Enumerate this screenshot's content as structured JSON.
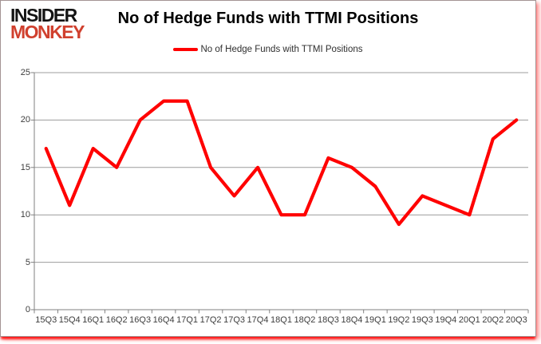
{
  "brand": {
    "line1": "INSIDER",
    "line2": "MONKEY",
    "monkey_color": "#d0402e",
    "insider_color": "#141414"
  },
  "header": {
    "title": "No of Hedge Funds with TTMI Positions"
  },
  "legend": {
    "label": "No of Hedge Funds with TTMI Positions",
    "line_color": "#ff0000"
  },
  "chart_data": {
    "type": "line",
    "title": "No of Hedge Funds with TTMI Positions",
    "categories": [
      "15Q3",
      "15Q4",
      "16Q1",
      "16Q2",
      "16Q3",
      "16Q4",
      "17Q1",
      "17Q2",
      "17Q3",
      "17Q4",
      "18Q1",
      "18Q2",
      "18Q3",
      "18Q4",
      "19Q1",
      "19Q2",
      "19Q3",
      "19Q4",
      "20Q1",
      "20Q2",
      "20Q3"
    ],
    "series": [
      {
        "name": "No of Hedge Funds with TTMI Positions",
        "color": "#ff0000",
        "values": [
          17,
          11,
          17,
          15,
          20,
          22,
          22,
          15,
          12,
          15,
          10,
          10,
          16,
          15,
          13,
          9,
          12,
          11,
          10,
          18,
          20
        ]
      }
    ],
    "xlabel": "",
    "ylabel": "",
    "ylim": [
      0,
      25
    ],
    "yticks": [
      0,
      5,
      10,
      15,
      20,
      25
    ],
    "grid": "horizontal",
    "legend_position": "top"
  },
  "colors": {
    "gridline": "#9c9c9c",
    "axis": "#808080",
    "tick_label": "#3d3d3d"
  }
}
